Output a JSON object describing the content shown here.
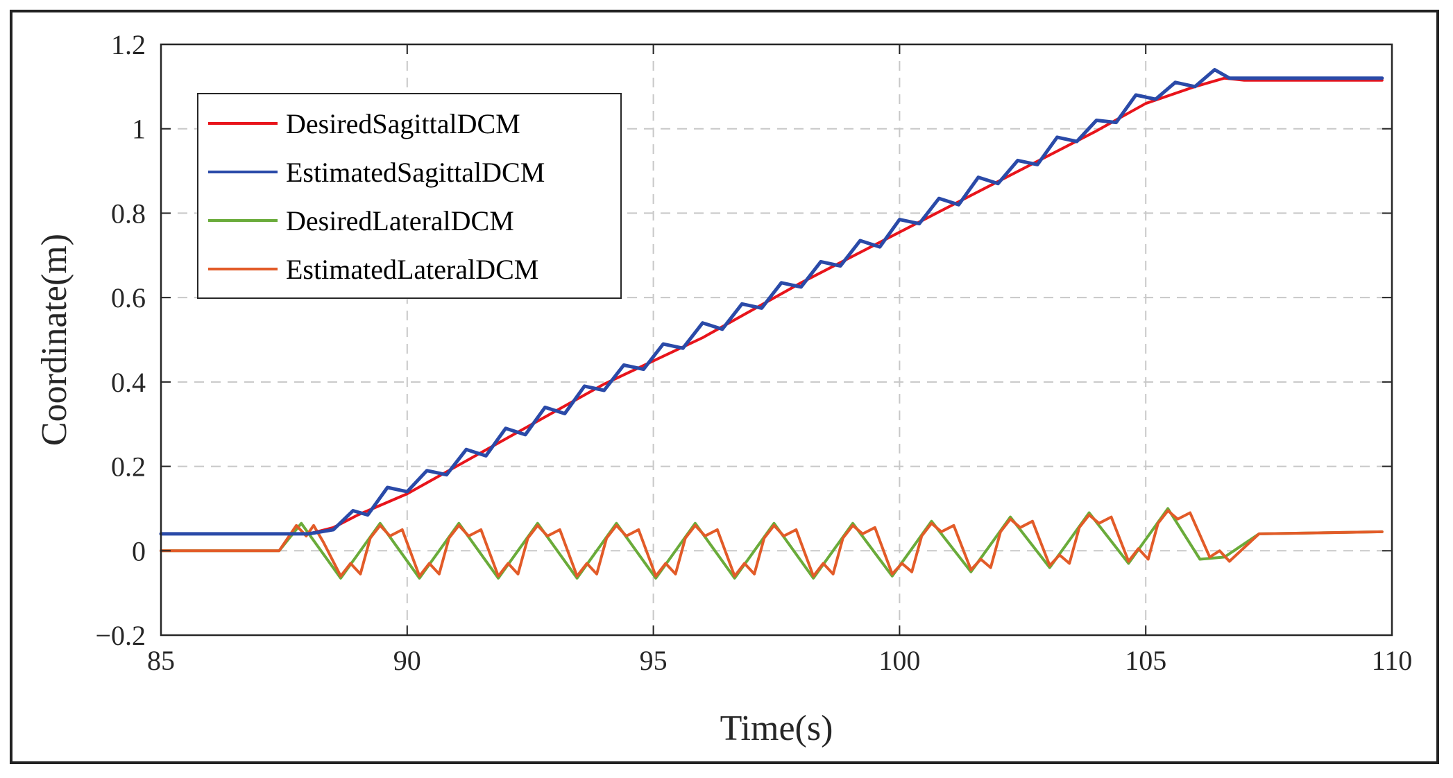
{
  "chart_data": {
    "type": "line",
    "xlabel": "Time(s)",
    "ylabel": "Coordinate(m)",
    "xlim": [
      85,
      110
    ],
    "ylim": [
      -0.2,
      1.2
    ],
    "xticks": [
      "85",
      "90",
      "95",
      "100",
      "105",
      "110"
    ],
    "xtick_values": [
      85,
      90,
      95,
      100,
      105,
      110
    ],
    "yticks": [
      "−0.2",
      "0",
      "0.2",
      "0.4",
      "0.6",
      "0.8",
      "1",
      "1.2"
    ],
    "ytick_values": [
      -0.2,
      0,
      0.2,
      0.4,
      0.6,
      0.8,
      1.0,
      1.2
    ],
    "grid": true,
    "legend_position": "top-left",
    "series": [
      {
        "name": "DesiredSagittalDCM",
        "color": "#e8141b",
        "x": [
          85,
          88,
          88.5,
          89,
          90,
          92,
          94,
          96,
          98,
          100,
          102,
          104,
          105,
          106,
          106.6,
          107,
          109.8
        ],
        "y": [
          0.04,
          0.04,
          0.055,
          0.085,
          0.135,
          0.265,
          0.395,
          0.505,
          0.635,
          0.755,
          0.875,
          0.995,
          1.06,
          1.1,
          1.12,
          1.115,
          1.115
        ]
      },
      {
        "name": "EstimatedSagittalDCM",
        "color": "#2a4aa8",
        "x": [
          85,
          88,
          88.5,
          88.9,
          89.2,
          89.6,
          90,
          90.4,
          90.8,
          91.2,
          91.6,
          92,
          92.4,
          92.8,
          93.2,
          93.6,
          94,
          94.4,
          94.8,
          95.2,
          95.6,
          96,
          96.4,
          96.8,
          97.2,
          97.6,
          98,
          98.4,
          98.8,
          99.2,
          99.6,
          100,
          100.4,
          100.8,
          101.2,
          101.6,
          102,
          102.4,
          102.8,
          103.2,
          103.6,
          104,
          104.4,
          104.8,
          105.2,
          105.6,
          106,
          106.4,
          106.7,
          107,
          109.8
        ],
        "y": [
          0.04,
          0.04,
          0.05,
          0.095,
          0.085,
          0.15,
          0.14,
          0.19,
          0.18,
          0.24,
          0.225,
          0.29,
          0.275,
          0.34,
          0.325,
          0.39,
          0.38,
          0.44,
          0.43,
          0.49,
          0.48,
          0.54,
          0.525,
          0.585,
          0.575,
          0.635,
          0.625,
          0.685,
          0.675,
          0.735,
          0.72,
          0.785,
          0.775,
          0.835,
          0.82,
          0.885,
          0.87,
          0.925,
          0.915,
          0.98,
          0.97,
          1.02,
          1.015,
          1.08,
          1.07,
          1.11,
          1.1,
          1.14,
          1.12,
          1.12,
          1.12
        ]
      },
      {
        "name": "DesiredLateralDCM",
        "color": "#6aab3a",
        "x": [
          85,
          87.4,
          87.85,
          88.65,
          89.45,
          90.25,
          91.05,
          91.85,
          92.65,
          93.45,
          94.25,
          95.05,
          95.85,
          96.65,
          97.45,
          98.25,
          99.05,
          99.85,
          100.65,
          101.45,
          102.25,
          103.05,
          103.85,
          104.65,
          105.45,
          106.1,
          106.6,
          107.3,
          109.8
        ],
        "y": [
          0,
          0,
          0.065,
          -0.065,
          0.065,
          -0.065,
          0.065,
          -0.065,
          0.065,
          -0.065,
          0.065,
          -0.065,
          0.065,
          -0.065,
          0.065,
          -0.065,
          0.065,
          -0.06,
          0.07,
          -0.05,
          0.08,
          -0.04,
          0.09,
          -0.03,
          0.1,
          -0.02,
          -0.015,
          0.04,
          0.045
        ]
      },
      {
        "name": "EstimatedLateralDCM",
        "color": "#e25b28",
        "x": [
          85,
          87.4,
          87.75,
          87.95,
          88.1,
          88.3,
          88.65,
          88.85,
          89.05,
          89.25,
          89.45,
          89.65,
          89.9,
          90.25,
          90.45,
          90.65,
          90.85,
          91.05,
          91.25,
          91.5,
          91.85,
          92.05,
          92.25,
          92.45,
          92.65,
          92.85,
          93.1,
          93.45,
          93.65,
          93.85,
          94.05,
          94.25,
          94.45,
          94.7,
          95.05,
          95.25,
          95.45,
          95.65,
          95.85,
          96.05,
          96.3,
          96.65,
          96.85,
          97.05,
          97.25,
          97.45,
          97.65,
          97.9,
          98.25,
          98.45,
          98.65,
          98.85,
          99.05,
          99.25,
          99.5,
          99.85,
          100.05,
          100.25,
          100.45,
          100.65,
          100.85,
          101.1,
          101.45,
          101.65,
          101.85,
          102.05,
          102.25,
          102.45,
          102.7,
          103.05,
          103.25,
          103.45,
          103.65,
          103.85,
          104.05,
          104.3,
          104.65,
          104.85,
          105.05,
          105.25,
          105.45,
          105.65,
          105.9,
          106.3,
          106.5,
          106.7,
          107.3,
          109.8
        ],
        "y": [
          0,
          0,
          0.06,
          0.035,
          0.06,
          0.02,
          -0.06,
          -0.03,
          -0.055,
          0.03,
          0.06,
          0.035,
          0.05,
          -0.06,
          -0.03,
          -0.055,
          0.03,
          0.06,
          0.035,
          0.05,
          -0.06,
          -0.03,
          -0.055,
          0.03,
          0.06,
          0.035,
          0.05,
          -0.06,
          -0.03,
          -0.055,
          0.03,
          0.06,
          0.035,
          0.05,
          -0.06,
          -0.03,
          -0.055,
          0.03,
          0.06,
          0.035,
          0.05,
          -0.06,
          -0.03,
          -0.055,
          0.03,
          0.06,
          0.035,
          0.05,
          -0.06,
          -0.03,
          -0.055,
          0.03,
          0.06,
          0.04,
          0.055,
          -0.055,
          -0.03,
          -0.05,
          0.035,
          0.065,
          0.045,
          0.06,
          -0.045,
          -0.02,
          -0.04,
          0.045,
          0.075,
          0.055,
          0.07,
          -0.035,
          -0.01,
          -0.03,
          0.055,
          0.085,
          0.065,
          0.08,
          -0.025,
          0.005,
          -0.02,
          0.065,
          0.095,
          0.075,
          0.09,
          -0.015,
          0.0,
          -0.025,
          0.04,
          0.045
        ]
      }
    ]
  }
}
